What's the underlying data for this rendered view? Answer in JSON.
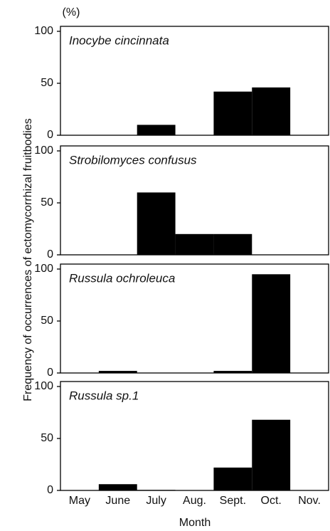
{
  "chart_data": [
    {
      "type": "bar",
      "title": "Inocybe cincinnata",
      "y_unit": "(%)",
      "y_label": "Frequency of occurrences of ectomycorrhizal fruitbodies",
      "values": [
        0,
        0,
        10,
        0,
        42,
        46,
        0
      ],
      "color": "#000000",
      "ylim": [
        0,
        100
      ],
      "yticks": [
        0,
        50,
        100
      ]
    },
    {
      "type": "bar",
      "title": "Strobilomyces confusus",
      "values": [
        0,
        0,
        60,
        20,
        20,
        0,
        0
      ],
      "color": "#000000",
      "ylim": [
        0,
        100
      ],
      "yticks": [
        0,
        50,
        100
      ]
    },
    {
      "type": "bar",
      "title": "Russula ochroleuca",
      "values": [
        0,
        2,
        0,
        0,
        2,
        95,
        0
      ],
      "color": "#000000",
      "ylim": [
        0,
        100
      ],
      "yticks": [
        0,
        50,
        100
      ]
    },
    {
      "type": "bar",
      "title": "Russula sp.1",
      "x_label": "Month",
      "categories": [
        "May",
        "June",
        "July",
        "Aug.",
        "Sept.",
        "Oct.",
        "Nov."
      ],
      "values": [
        0,
        6,
        0.5,
        0,
        22,
        68,
        0
      ],
      "color": "#000000",
      "ylim": [
        0,
        100
      ],
      "yticks": [
        0,
        50,
        100
      ]
    }
  ]
}
